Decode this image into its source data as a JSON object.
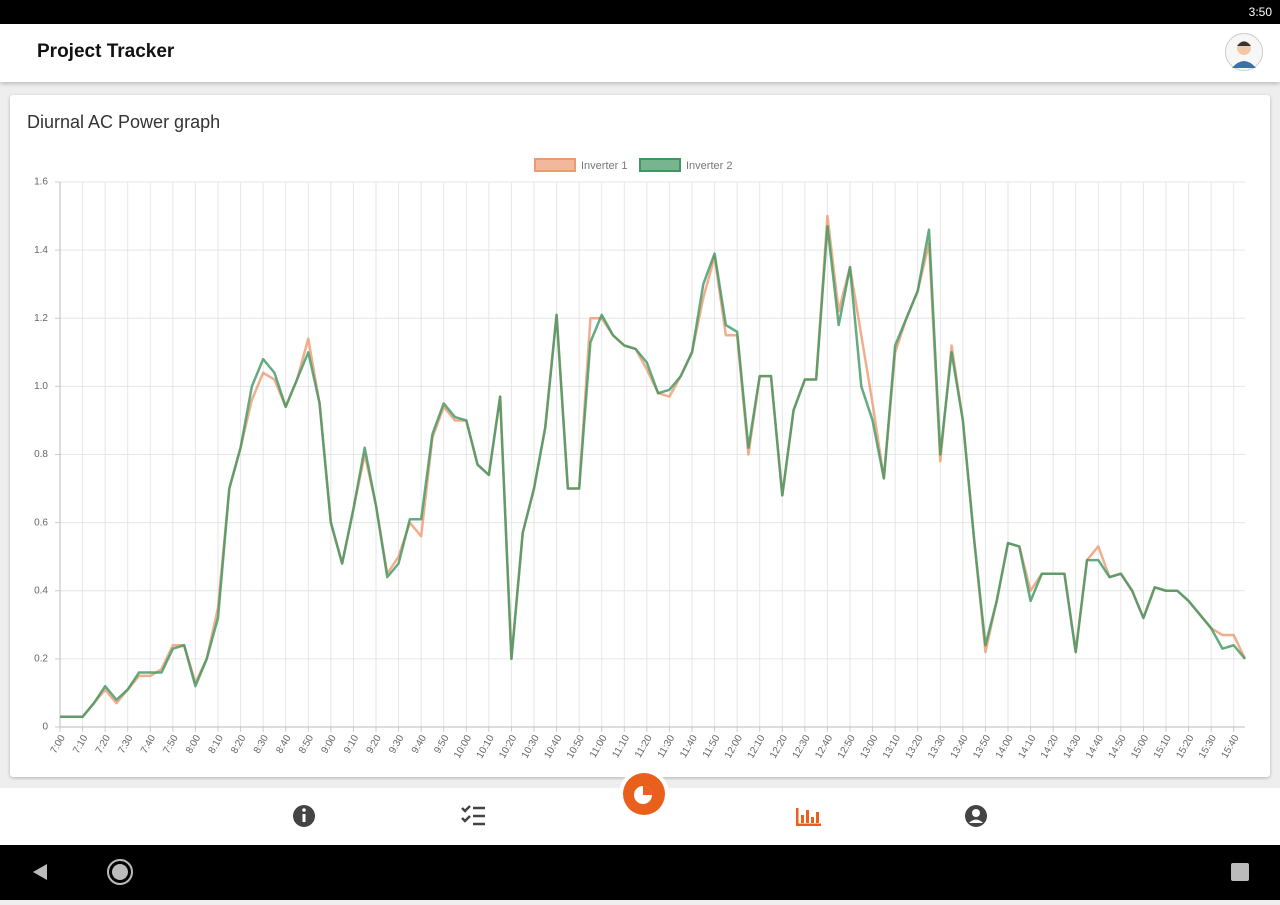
{
  "status_bar": {
    "time": "3:50"
  },
  "app_bar": {
    "title": "Project Tracker"
  },
  "chart_data": {
    "type": "line",
    "title": "Diurnal AC Power graph",
    "categories": [
      "7:00",
      null,
      "7:10",
      null,
      "7:20",
      null,
      "7:30",
      null,
      "7:40",
      null,
      "7:50",
      null,
      "8:00",
      null,
      "8:10",
      null,
      "8:20",
      null,
      "8:30",
      null,
      "8:40",
      null,
      "8:50",
      null,
      "9:00",
      null,
      "9:10",
      null,
      "9:20",
      null,
      "9:30",
      null,
      "9:40",
      null,
      "9:50",
      null,
      "10:00",
      null,
      "10:10",
      null,
      "10:20",
      null,
      "10:30",
      null,
      "10:40",
      null,
      "10:50",
      null,
      "11:00",
      null,
      "11:10",
      null,
      "11:20",
      null,
      "11:30",
      null,
      "11:40",
      null,
      "11:50",
      null,
      "12:00",
      null,
      "12:10",
      null,
      "12:20",
      null,
      "12:30",
      null,
      "12:40",
      null,
      "12:50",
      null,
      "13:00",
      null,
      "13:10",
      null,
      "13:20",
      null,
      "13:30",
      null,
      "13:40",
      null,
      "13:50",
      null,
      "14:00",
      null,
      "14:10",
      null,
      "14:20",
      null,
      "14:30",
      null,
      "14:40",
      null,
      "14:50",
      null,
      "15:00",
      null,
      "15:10",
      null,
      "15:20",
      null,
      "15:30",
      null,
      "15:40",
      null
    ],
    "series": [
      {
        "name": "Inverter 1",
        "color": "#ec9a72",
        "values": [
          0.03,
          0.03,
          0.03,
          0.07,
          0.11,
          0.07,
          0.11,
          0.15,
          0.15,
          0.17,
          0.24,
          0.24,
          0.13,
          0.2,
          0.35,
          0.7,
          0.82,
          0.96,
          1.04,
          1.02,
          0.94,
          1.02,
          1.14,
          0.95,
          0.6,
          0.48,
          0.64,
          0.8,
          0.65,
          0.45,
          0.5,
          0.6,
          0.56,
          0.85,
          0.94,
          0.9,
          0.9,
          0.77,
          0.74,
          0.97,
          0.2,
          0.57,
          0.7,
          0.88,
          1.21,
          0.7,
          0.7,
          1.2,
          1.2,
          1.15,
          1.12,
          1.11,
          1.05,
          0.98,
          0.97,
          1.03,
          1.1,
          1.26,
          1.38,
          1.15,
          1.15,
          0.8,
          1.03,
          1.03,
          0.68,
          0.93,
          1.02,
          1.02,
          1.5,
          1.22,
          1.35,
          1.15,
          0.95,
          0.73,
          1.1,
          1.2,
          1.28,
          1.42,
          0.78,
          1.12,
          0.9,
          0.55,
          0.22,
          0.37,
          0.54,
          0.53,
          0.4,
          0.45,
          0.45,
          0.45,
          0.22,
          0.49,
          0.53,
          0.44,
          0.45,
          0.4,
          0.32,
          0.41,
          0.4,
          0.4,
          0.37,
          0.33,
          0.29,
          0.27,
          0.27,
          0.2
        ]
      },
      {
        "name": "Inverter 2",
        "color": "#3f9660",
        "values": [
          0.03,
          0.03,
          0.03,
          0.07,
          0.12,
          0.08,
          0.11,
          0.16,
          0.16,
          0.16,
          0.23,
          0.24,
          0.12,
          0.2,
          0.32,
          0.7,
          0.82,
          1.0,
          1.08,
          1.04,
          0.94,
          1.02,
          1.1,
          0.95,
          0.6,
          0.48,
          0.64,
          0.82,
          0.65,
          0.44,
          0.48,
          0.61,
          0.61,
          0.86,
          0.95,
          0.91,
          0.9,
          0.77,
          0.74,
          0.97,
          0.2,
          0.57,
          0.7,
          0.88,
          1.21,
          0.7,
          0.7,
          1.13,
          1.21,
          1.15,
          1.12,
          1.11,
          1.07,
          0.98,
          0.99,
          1.03,
          1.1,
          1.3,
          1.39,
          1.18,
          1.16,
          0.82,
          1.03,
          1.03,
          0.68,
          0.93,
          1.02,
          1.02,
          1.47,
          1.18,
          1.35,
          1.0,
          0.9,
          0.73,
          1.12,
          1.2,
          1.28,
          1.46,
          0.8,
          1.1,
          0.9,
          0.55,
          0.24,
          0.37,
          0.54,
          0.53,
          0.37,
          0.45,
          0.45,
          0.45,
          0.22,
          0.49,
          0.49,
          0.44,
          0.45,
          0.4,
          0.32,
          0.41,
          0.4,
          0.4,
          0.37,
          0.33,
          0.29,
          0.23,
          0.24,
          0.2
        ]
      }
    ],
    "ylim": [
      0,
      1.6
    ],
    "yticks": [
      0,
      0.2,
      0.4,
      0.6,
      0.8,
      {
        "value": 1,
        "label": "1.0"
      },
      1.2,
      1.4,
      1.6
    ],
    "grid": true,
    "legend": "top"
  }
}
